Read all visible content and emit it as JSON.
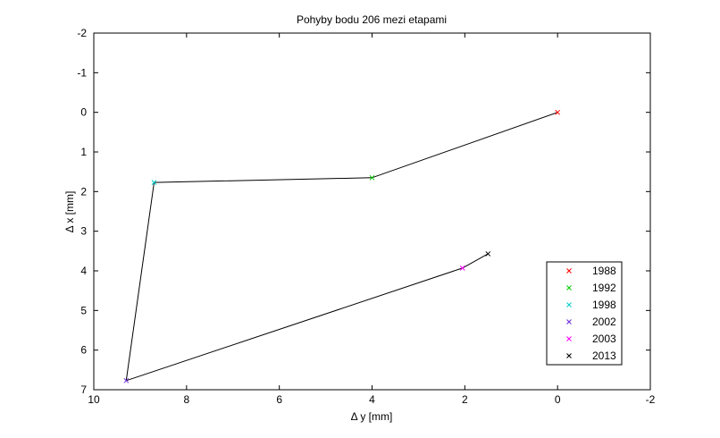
{
  "chart_data": {
    "type": "line",
    "title": "Pohyby bodu 206 mezi etapami",
    "xlabel": "Δ y [mm]",
    "ylabel": "Δ x [mm]",
    "xlim": [
      10,
      -2
    ],
    "ylim": [
      7,
      -2
    ],
    "x_reversed": true,
    "y_reversed": true,
    "grid": false,
    "legend_position": "bottom-right",
    "x_ticks": [
      10,
      8,
      6,
      4,
      2,
      0,
      -2
    ],
    "x_tick_labels": [
      "10",
      "8",
      "6",
      "4",
      "2",
      "0",
      "-2"
    ],
    "y_ticks": [
      -2,
      -1,
      0,
      1,
      2,
      3,
      4,
      5,
      6,
      7
    ],
    "y_tick_labels": [
      "-2",
      "-1",
      "0",
      "1",
      "2",
      "3",
      "4",
      "5",
      "6",
      "7"
    ],
    "path": {
      "color": "#000000",
      "points": [
        {
          "x": 0.0,
          "y": 0.0
        },
        {
          "x": 4.0,
          "y": 1.65
        },
        {
          "x": 8.7,
          "y": 1.77
        },
        {
          "x": 9.3,
          "y": 6.77
        },
        {
          "x": 2.05,
          "y": 3.93
        },
        {
          "x": 1.5,
          "y": 3.57
        }
      ]
    },
    "series": [
      {
        "name": "1988",
        "color": "#ff0000",
        "x": 0.0,
        "y": 0.0
      },
      {
        "name": "1992",
        "color": "#00cc00",
        "x": 4.0,
        "y": 1.65
      },
      {
        "name": "1998",
        "color": "#00cccc",
        "x": 8.7,
        "y": 1.77
      },
      {
        "name": "2002",
        "color": "#6a2ad8",
        "x": 9.3,
        "y": 6.77
      },
      {
        "name": "2003",
        "color": "#ff00ff",
        "x": 2.05,
        "y": 3.93
      },
      {
        "name": "2013",
        "color": "#000000",
        "x": 1.5,
        "y": 3.57
      }
    ]
  }
}
